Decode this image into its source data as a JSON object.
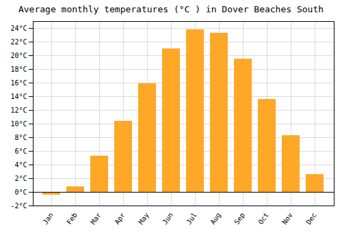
{
  "chart_data": {
    "type": "bar",
    "title": "Average monthly temperatures (°C ) in Dover Beaches South",
    "categories": [
      "Jan",
      "Feb",
      "Mar",
      "Apr",
      "May",
      "Jun",
      "Jul",
      "Aug",
      "Sep",
      "Oct",
      "Nov",
      "Dec"
    ],
    "values": [
      -0.4,
      0.8,
      5.3,
      10.4,
      15.9,
      21.0,
      23.8,
      23.3,
      19.5,
      13.6,
      8.3,
      2.6
    ],
    "color": "#FFA726",
    "ylim": [
      -2,
      25
    ],
    "yticks": [
      {
        "value": -2,
        "label": "-2°C"
      },
      {
        "value": 0,
        "label": "0°C"
      },
      {
        "value": 2,
        "label": "2°C"
      },
      {
        "value": 4,
        "label": "4°C"
      },
      {
        "value": 6,
        "label": "6°C"
      },
      {
        "value": 8,
        "label": "8°C"
      },
      {
        "value": 10,
        "label": "10°C"
      },
      {
        "value": 12,
        "label": "12°C"
      },
      {
        "value": 14,
        "label": "14°C"
      },
      {
        "value": 16,
        "label": "16°C"
      },
      {
        "value": 18,
        "label": "18°C"
      },
      {
        "value": 20,
        "label": "20°C"
      },
      {
        "value": 22,
        "label": "22°C"
      },
      {
        "value": 24,
        "label": "24°C"
      }
    ],
    "grid": true
  }
}
